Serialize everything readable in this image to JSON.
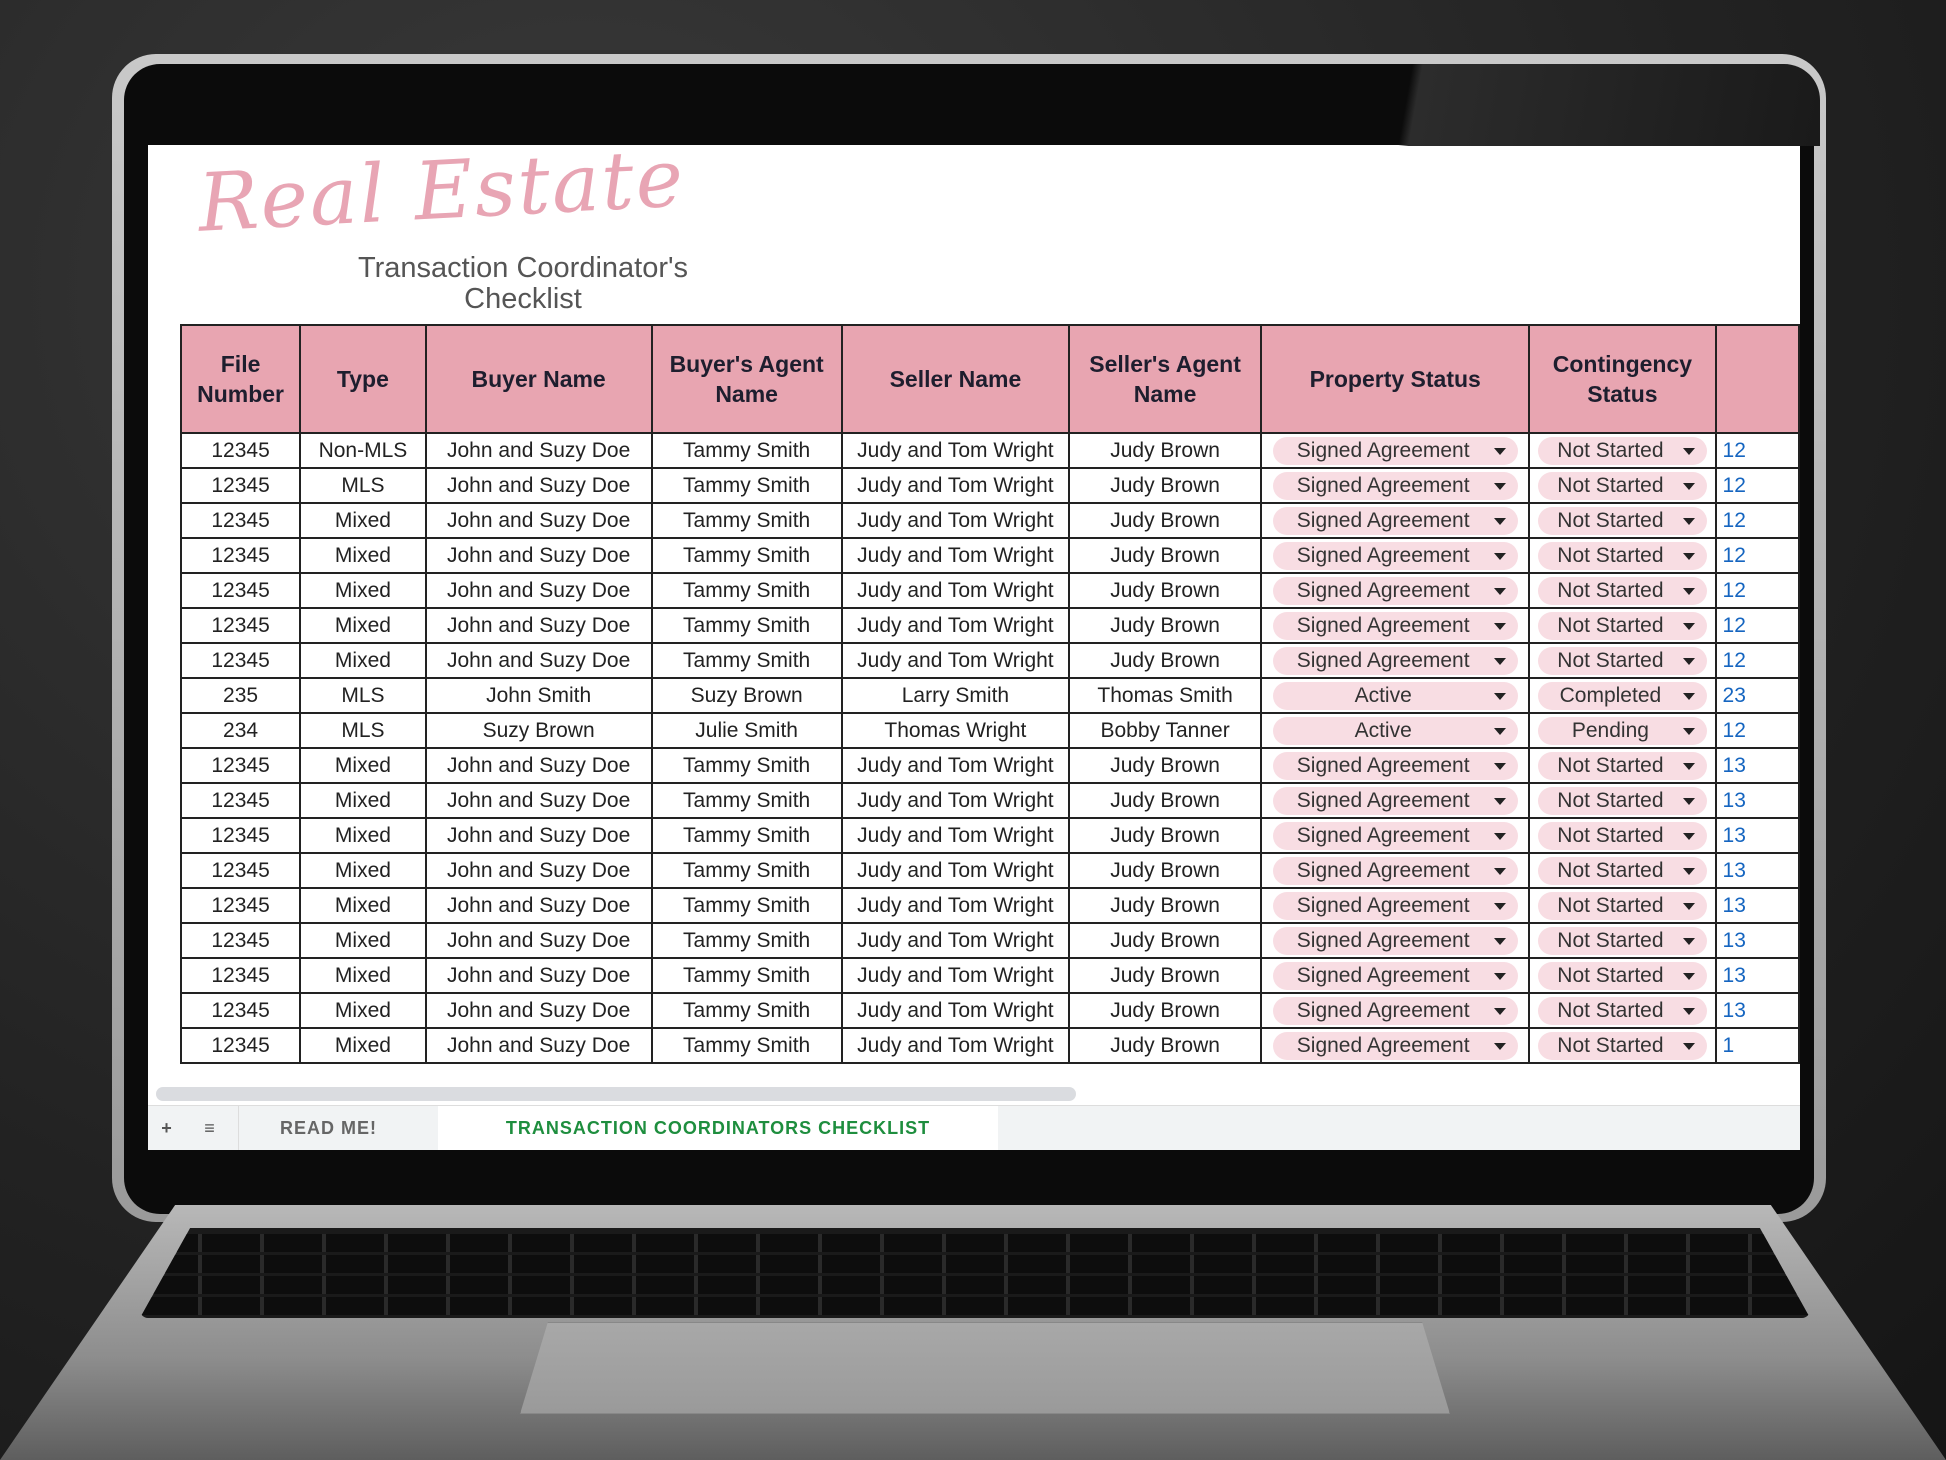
{
  "logo": {
    "script": "Real Estate",
    "subtitle_line1": "Transaction Coordinator's",
    "subtitle_line2": "Checklist"
  },
  "colors": {
    "header": "#e8a5b1",
    "pill": "#f8dde3",
    "active_tab": "#1e8e3e"
  },
  "columns": [
    "File Number",
    "Type",
    "Buyer Name",
    "Buyer's Agent Name",
    "Seller Name",
    "Seller's Agent Name",
    "Property Status",
    "Contingency Status",
    ""
  ],
  "rows": [
    [
      "12345",
      "Non-MLS",
      "John and Suzy Doe",
      "Tammy Smith",
      "Judy and Tom Wright",
      "Judy Brown",
      "Signed Agreement",
      "Not Started",
      "12"
    ],
    [
      "12345",
      "MLS",
      "John and Suzy Doe",
      "Tammy Smith",
      "Judy and Tom Wright",
      "Judy Brown",
      "Signed Agreement",
      "Not Started",
      "12"
    ],
    [
      "12345",
      "Mixed",
      "John and Suzy Doe",
      "Tammy Smith",
      "Judy and Tom Wright",
      "Judy Brown",
      "Signed Agreement",
      "Not Started",
      "12"
    ],
    [
      "12345",
      "Mixed",
      "John and Suzy Doe",
      "Tammy Smith",
      "Judy and Tom Wright",
      "Judy Brown",
      "Signed Agreement",
      "Not Started",
      "12"
    ],
    [
      "12345",
      "Mixed",
      "John and Suzy Doe",
      "Tammy Smith",
      "Judy and Tom Wright",
      "Judy Brown",
      "Signed Agreement",
      "Not Started",
      "12"
    ],
    [
      "12345",
      "Mixed",
      "John and Suzy Doe",
      "Tammy Smith",
      "Judy and Tom Wright",
      "Judy Brown",
      "Signed Agreement",
      "Not Started",
      "12"
    ],
    [
      "12345",
      "Mixed",
      "John and Suzy Doe",
      "Tammy Smith",
      "Judy and Tom Wright",
      "Judy Brown",
      "Signed Agreement",
      "Not Started",
      "12"
    ],
    [
      "235",
      "MLS",
      "John Smith",
      "Suzy Brown",
      "Larry Smith",
      "Thomas Smith",
      "Active",
      "Completed",
      "23"
    ],
    [
      "234",
      "MLS",
      "Suzy Brown",
      "Julie Smith",
      "Thomas Wright",
      "Bobby Tanner",
      "Active",
      "Pending",
      "12"
    ],
    [
      "12345",
      "Mixed",
      "John and Suzy Doe",
      "Tammy Smith",
      "Judy and Tom Wright",
      "Judy Brown",
      "Signed Agreement",
      "Not Started",
      "13"
    ],
    [
      "12345",
      "Mixed",
      "John and Suzy Doe",
      "Tammy Smith",
      "Judy and Tom Wright",
      "Judy Brown",
      "Signed Agreement",
      "Not Started",
      "13"
    ],
    [
      "12345",
      "Mixed",
      "John and Suzy Doe",
      "Tammy Smith",
      "Judy and Tom Wright",
      "Judy Brown",
      "Signed Agreement",
      "Not Started",
      "13"
    ],
    [
      "12345",
      "Mixed",
      "John and Suzy Doe",
      "Tammy Smith",
      "Judy and Tom Wright",
      "Judy Brown",
      "Signed Agreement",
      "Not Started",
      "13"
    ],
    [
      "12345",
      "Mixed",
      "John and Suzy Doe",
      "Tammy Smith",
      "Judy and Tom Wright",
      "Judy Brown",
      "Signed Agreement",
      "Not Started",
      "13"
    ],
    [
      "12345",
      "Mixed",
      "John and Suzy Doe",
      "Tammy Smith",
      "Judy and Tom Wright",
      "Judy Brown",
      "Signed Agreement",
      "Not Started",
      "13"
    ],
    [
      "12345",
      "Mixed",
      "John and Suzy Doe",
      "Tammy Smith",
      "Judy and Tom Wright",
      "Judy Brown",
      "Signed Agreement",
      "Not Started",
      "13"
    ],
    [
      "12345",
      "Mixed",
      "John and Suzy Doe",
      "Tammy Smith",
      "Judy and Tom Wright",
      "Judy Brown",
      "Signed Agreement",
      "Not Started",
      "13"
    ],
    [
      "12345",
      "Mixed",
      "John and Suzy Doe",
      "Tammy Smith",
      "Judy and Tom Wright",
      "Judy Brown",
      "Signed Agreement",
      "Not Started",
      "1"
    ]
  ],
  "sheet_tabs": [
    "READ ME!",
    "TRANSACTION COORDINATORS CHECKLIST"
  ]
}
